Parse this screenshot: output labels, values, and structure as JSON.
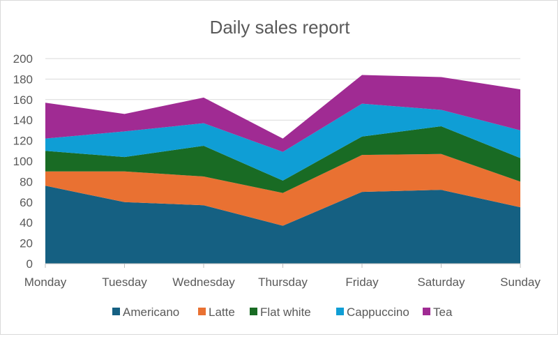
{
  "chart_data": {
    "type": "area",
    "stacked": true,
    "title": "Daily sales report",
    "xlabel": "",
    "ylabel": "",
    "categories": [
      "Monday",
      "Tuesday",
      "Wednesday",
      "Thursday",
      "Friday",
      "Saturday",
      "Sunday"
    ],
    "ylim": [
      0,
      200
    ],
    "yticks": [
      0,
      20,
      40,
      60,
      80,
      100,
      120,
      140,
      160,
      180,
      200
    ],
    "grid": true,
    "legend": "bottom",
    "series": [
      {
        "name": "Americano",
        "color": "#156082",
        "values": [
          76,
          60,
          57,
          37,
          70,
          72,
          55
        ]
      },
      {
        "name": "Latte",
        "color": "#E97132",
        "values": [
          14,
          30,
          28,
          32,
          36,
          35,
          25
        ]
      },
      {
        "name": "Flat white",
        "color": "#196B24",
        "values": [
          20,
          14,
          30,
          12,
          18,
          27,
          23
        ]
      },
      {
        "name": "Cappuccino",
        "color": "#0F9ED5",
        "values": [
          12,
          25,
          22,
          28,
          32,
          16,
          27
        ]
      },
      {
        "name": "Tea",
        "color": "#A02B93",
        "values": [
          35,
          17,
          25,
          13,
          28,
          32,
          40
        ]
      }
    ]
  }
}
